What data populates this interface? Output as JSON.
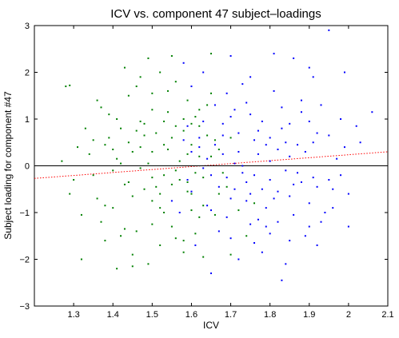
{
  "chart_data": {
    "type": "scatter",
    "title": "ICV vs. component 47 subject–loadings",
    "xlabel": "ICV",
    "ylabel": "Subject loading for component #47",
    "xlim": [
      1.2,
      2.1
    ],
    "ylim": [
      -3,
      3
    ],
    "xticks": [
      "1.3",
      "1.4",
      "1.5",
      "1.6",
      "1.7",
      "1.8",
      "1.9",
      "2",
      "2.1"
    ],
    "yticks": [
      "3",
      "2",
      "1",
      "0",
      "−1",
      "−2",
      "−3"
    ],
    "grid": false,
    "legend": "none",
    "colors": {
      "green_series": "#008000",
      "blue_series": "#0000ff",
      "fit_line": "#ff0000",
      "zero_line": "#000000"
    },
    "series": [
      {
        "marker": "dot",
        "color": "#008000",
        "points": [
          [
            1.38,
            0.45
          ],
          [
            1.4,
            -0.1
          ],
          [
            1.42,
            0.8
          ],
          [
            1.45,
            0.3
          ],
          [
            1.48,
            -0.5
          ],
          [
            1.5,
            1.2
          ],
          [
            1.52,
            -0.9
          ],
          [
            1.55,
            0.6
          ],
          [
            1.57,
            -0.3
          ],
          [
            1.6,
            0.9
          ],
          [
            1.62,
            -1.1
          ],
          [
            1.65,
            0.2
          ],
          [
            1.36,
            -0.7
          ],
          [
            1.44,
            1.5
          ],
          [
            1.46,
            -1.4
          ],
          [
            1.49,
            0.05
          ],
          [
            1.51,
            0.7
          ],
          [
            1.53,
            -0.2
          ],
          [
            1.56,
            1.8
          ],
          [
            1.58,
            -1.6
          ],
          [
            1.41,
            0.15
          ],
          [
            1.43,
            -0.4
          ],
          [
            1.47,
            0.95
          ],
          [
            1.5,
            -0.75
          ],
          [
            1.54,
            0.35
          ],
          [
            1.59,
            -0.55
          ],
          [
            1.61,
            1.05
          ],
          [
            1.63,
            -0.85
          ],
          [
            1.66,
            0.55
          ],
          [
            1.68,
            -0.15
          ],
          [
            1.34,
            0.25
          ],
          [
            1.37,
            -1.2
          ],
          [
            1.39,
            1.1
          ],
          [
            1.45,
            -1.9
          ],
          [
            1.48,
            0.65
          ],
          [
            1.52,
            2.0
          ],
          [
            1.55,
            -1.3
          ],
          [
            1.57,
            0.1
          ],
          [
            1.6,
            -0.6
          ],
          [
            1.64,
            1.3
          ],
          [
            1.3,
            -0.3
          ],
          [
            1.33,
            0.8
          ],
          [
            1.35,
            -0.2
          ],
          [
            1.4,
            -0.9
          ],
          [
            1.44,
            0.5
          ],
          [
            1.47,
            -0.05
          ],
          [
            1.5,
            0.3
          ],
          [
            1.53,
            -1.0
          ],
          [
            1.56,
            0.85
          ],
          [
            1.59,
            -0.35
          ],
          [
            1.27,
            0.1
          ],
          [
            1.29,
            -0.6
          ],
          [
            1.31,
            0.4
          ],
          [
            1.32,
            -1.05
          ],
          [
            1.36,
            1.4
          ],
          [
            1.42,
            -1.5
          ],
          [
            1.46,
            1.7
          ],
          [
            1.49,
            -2.1
          ],
          [
            1.51,
            -0.45
          ],
          [
            1.54,
            1.15
          ],
          [
            1.6,
            0.45
          ],
          [
            1.62,
            0.2
          ],
          [
            1.58,
            0.75
          ],
          [
            1.63,
            -0.25
          ],
          [
            1.67,
            0.35
          ],
          [
            1.69,
            -0.45
          ],
          [
            1.7,
            0.6
          ],
          [
            1.72,
            -0.95
          ],
          [
            1.61,
            -1.45
          ],
          [
            1.65,
            1.55
          ],
          [
            1.28,
            1.7
          ],
          [
            1.29,
            1.72
          ],
          [
            1.32,
            -2.0
          ],
          [
            1.43,
            2.1
          ],
          [
            1.49,
            2.3
          ],
          [
            1.55,
            2.35
          ],
          [
            1.65,
            2.4
          ],
          [
            1.7,
            -1.9
          ],
          [
            1.74,
            -1.5
          ],
          [
            1.76,
            -0.8
          ],
          [
            1.38,
            -1.6
          ],
          [
            1.41,
            -2.2
          ],
          [
            1.45,
            -2.15
          ],
          [
            1.52,
            -1.7
          ],
          [
            1.58,
            -1.85
          ],
          [
            1.63,
            -1.95
          ],
          [
            1.47,
            1.9
          ],
          [
            1.54,
            1.6
          ],
          [
            1.59,
            1.4
          ],
          [
            1.62,
            1.2
          ],
          [
            1.39,
            0.6
          ],
          [
            1.42,
            0.05
          ],
          [
            1.45,
            -0.65
          ],
          [
            1.48,
            0.9
          ],
          [
            1.5,
            -1.25
          ],
          [
            1.53,
            0.45
          ],
          [
            1.56,
            -0.1
          ],
          [
            1.6,
            -0.95
          ],
          [
            1.64,
            0.65
          ],
          [
            1.67,
            -0.6
          ],
          [
            1.37,
            1.25
          ],
          [
            1.4,
            0.35
          ],
          [
            1.43,
            -1.35
          ],
          [
            1.46,
            0.75
          ],
          [
            1.5,
            1.55
          ],
          [
            1.52,
            -0.6
          ],
          [
            1.55,
            -0.4
          ],
          [
            1.58,
            1.0
          ],
          [
            1.61,
            -0.15
          ],
          [
            1.66,
            -1.05
          ],
          [
            1.44,
            -0.35
          ],
          [
            1.47,
            0.4
          ],
          [
            1.5,
            -0.25
          ],
          [
            1.53,
            0.95
          ],
          [
            1.56,
            -1.55
          ],
          [
            1.59,
            0.25
          ],
          [
            1.62,
            0.85
          ],
          [
            1.35,
            0.55
          ],
          [
            1.38,
            -0.85
          ],
          [
            1.41,
            1.0
          ]
        ]
      },
      {
        "marker": "dot",
        "color": "#0000ff",
        "points": [
          [
            1.62,
            0.4
          ],
          [
            1.65,
            -0.2
          ],
          [
            1.68,
            0.9
          ],
          [
            1.7,
            -0.7
          ],
          [
            1.72,
            0.3
          ],
          [
            1.75,
            1.1
          ],
          [
            1.78,
            -0.5
          ],
          [
            1.8,
            0.6
          ],
          [
            1.82,
            -1.2
          ],
          [
            1.85,
            0.2
          ],
          [
            1.88,
            1.4
          ],
          [
            1.9,
            -0.8
          ],
          [
            1.92,
            0.7
          ],
          [
            1.95,
            -0.3
          ],
          [
            1.98,
            1.0
          ],
          [
            1.66,
            1.3
          ],
          [
            1.69,
            -1.1
          ],
          [
            1.71,
            0.05
          ],
          [
            1.74,
            -0.35
          ],
          [
            1.77,
            0.75
          ],
          [
            1.79,
            -0.9
          ],
          [
            1.81,
            1.6
          ],
          [
            1.84,
            -0.1
          ],
          [
            1.87,
            0.45
          ],
          [
            1.89,
            -1.5
          ],
          [
            1.91,
            1.9
          ],
          [
            1.94,
            -1.0
          ],
          [
            1.97,
            0.15
          ],
          [
            2.0,
            -0.6
          ],
          [
            2.03,
            0.5
          ],
          [
            1.6,
            -0.55
          ],
          [
            1.63,
            0.95
          ],
          [
            1.67,
            -1.4
          ],
          [
            1.73,
            1.75
          ],
          [
            1.76,
            -1.65
          ],
          [
            1.8,
            0.1
          ],
          [
            1.83,
            1.25
          ],
          [
            1.86,
            -0.4
          ],
          [
            1.9,
            0.95
          ],
          [
            1.93,
            -1.2
          ],
          [
            1.64,
            0.15
          ],
          [
            1.67,
            -0.45
          ],
          [
            1.7,
            1.05
          ],
          [
            1.73,
            -0.15
          ],
          [
            1.76,
            0.55
          ],
          [
            1.79,
            -1.3
          ],
          [
            1.82,
            0.35
          ],
          [
            1.85,
            -0.65
          ],
          [
            1.88,
            1.15
          ],
          [
            1.91,
            -0.25
          ],
          [
            1.57,
            -1.0
          ],
          [
            1.59,
            0.85
          ],
          [
            1.61,
            -1.7
          ],
          [
            1.58,
            2.2
          ],
          [
            1.63,
            2.0
          ],
          [
            1.7,
            2.35
          ],
          [
            1.75,
            1.9
          ],
          [
            1.81,
            2.4
          ],
          [
            1.86,
            2.3
          ],
          [
            1.9,
            2.1
          ],
          [
            1.95,
            2.9
          ],
          [
            1.99,
            2.0
          ],
          [
            2.06,
            1.15
          ],
          [
            2.0,
            -1.3
          ],
          [
            1.96,
            -0.9
          ],
          [
            1.92,
            -1.7
          ],
          [
            1.84,
            -2.1
          ],
          [
            1.78,
            -1.85
          ],
          [
            1.72,
            -2.0
          ],
          [
            1.65,
            -2.3
          ],
          [
            1.83,
            -2.45
          ],
          [
            1.69,
            1.55
          ],
          [
            1.74,
            -0.75
          ],
          [
            1.77,
            0.25
          ],
          [
            1.8,
            -0.3
          ],
          [
            1.83,
            0.8
          ],
          [
            1.86,
            -1.05
          ],
          [
            1.89,
            0.3
          ],
          [
            1.92,
            -0.45
          ],
          [
            1.95,
            0.65
          ],
          [
            1.98,
            -0.2
          ],
          [
            2.02,
            0.85
          ],
          [
            1.55,
            -0.75
          ],
          [
            1.58,
            0.55
          ],
          [
            1.6,
            1.7
          ],
          [
            1.64,
            -0.85
          ],
          [
            1.68,
            0.65
          ],
          [
            1.71,
            -0.5
          ],
          [
            1.74,
            1.35
          ],
          [
            1.77,
            -1.15
          ],
          [
            1.6,
            0.3
          ],
          [
            1.63,
            -0.05
          ],
          [
            1.66,
            0.45
          ],
          [
            1.69,
            -0.25
          ],
          [
            1.72,
            0.7
          ],
          [
            1.75,
            -0.6
          ],
          [
            1.78,
            0.95
          ],
          [
            1.81,
            -0.7
          ],
          [
            1.84,
            0.5
          ],
          [
            1.87,
            -0.15
          ],
          [
            1.59,
            -0.3
          ],
          [
            1.62,
            0.6
          ],
          [
            1.65,
            -0.95
          ],
          [
            1.68,
            0.25
          ],
          [
            1.71,
            1.2
          ],
          [
            1.73,
            0.0
          ],
          [
            1.76,
            -0.2
          ],
          [
            1.79,
            0.45
          ],
          [
            1.82,
            -0.55
          ],
          [
            1.85,
            0.9
          ],
          [
            1.88,
            -0.35
          ],
          [
            1.91,
            0.5
          ],
          [
            1.93,
            1.3
          ],
          [
            1.96,
            -0.5
          ],
          [
            1.99,
            0.4
          ],
          [
            1.7,
            -1.55
          ],
          [
            1.75,
            -1.25
          ],
          [
            1.8,
            -1.45
          ],
          [
            1.85,
            -1.6
          ],
          [
            1.9,
            -1.3
          ]
        ]
      }
    ],
    "lines": [
      {
        "name": "",
        "style": "dotted",
        "color": "#ff0000",
        "x": [
          1.2,
          2.1
        ],
        "y": [
          -0.27,
          0.3
        ]
      },
      {
        "name": "",
        "style": "solid",
        "color": "#000000",
        "x": [
          1.2,
          2.1
        ],
        "y": [
          0,
          0
        ]
      }
    ]
  }
}
